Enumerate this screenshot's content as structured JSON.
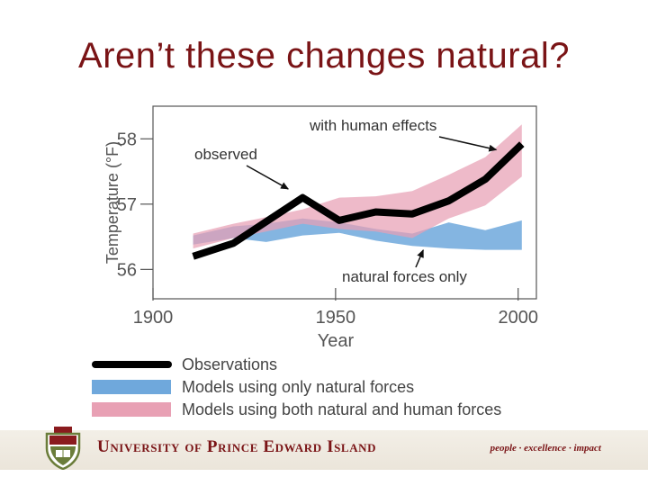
{
  "slide": {
    "title": "Aren’t these changes natural?"
  },
  "chart_data": {
    "type": "line",
    "xlabel": "Year",
    "ylabel": "Temperature (°F)",
    "xlim": [
      1900,
      2005
    ],
    "ylim": [
      55.55,
      58.5
    ],
    "x_ticks": [
      1900,
      1950,
      2000
    ],
    "y_ticks": [
      56,
      57,
      58
    ],
    "x_tick_labels": [
      "1900",
      "1950",
      "2000"
    ],
    "y_tick_labels": [
      "56",
      "57",
      "58"
    ],
    "series": [
      {
        "name": "Observations",
        "color": "#000000",
        "x": [
          1911,
          1922,
          1941,
          1951,
          1961,
          1971,
          1981,
          1991,
          2001
        ],
        "y": [
          56.2,
          56.4,
          57.1,
          56.75,
          56.88,
          56.85,
          57.05,
          57.38,
          57.92
        ]
      },
      {
        "name": "Models using only natural forces",
        "color": "#6fa8dc",
        "x": [
          1911,
          1922,
          1931,
          1941,
          1951,
          1961,
          1971,
          1981,
          1991,
          2001
        ],
        "lower": [
          56.38,
          56.48,
          56.42,
          56.52,
          56.56,
          56.44,
          56.36,
          56.32,
          56.3,
          56.3
        ],
        "upper": [
          56.52,
          56.66,
          56.7,
          56.78,
          56.72,
          56.62,
          56.55,
          56.72,
          56.6,
          56.75
        ]
      },
      {
        "name": "Models using both natural and human forces",
        "color": "#e8a0b4",
        "x": [
          1911,
          1922,
          1931,
          1941,
          1951,
          1961,
          1971,
          1981,
          1991,
          2001
        ],
        "lower": [
          56.32,
          56.48,
          56.58,
          56.7,
          56.62,
          56.58,
          56.48,
          56.78,
          56.98,
          57.42
        ],
        "upper": [
          56.55,
          56.7,
          56.8,
          56.92,
          57.1,
          57.12,
          57.2,
          57.45,
          57.72,
          58.22
        ]
      }
    ],
    "annotations": [
      {
        "text": "with human effects",
        "target_x": 1994,
        "target_y": 57.75
      },
      {
        "text": "observed",
        "target_x": 1938,
        "target_y": 57.15
      },
      {
        "text": "natural forces only",
        "target_x": 1974,
        "target_y": 56.35
      }
    ],
    "legend": {
      "position": "bottom",
      "items": [
        {
          "label": "Observations",
          "style": "line",
          "color": "#000000"
        },
        {
          "label": "Models using only natural forces",
          "style": "band",
          "color": "#6fa8dc"
        },
        {
          "label": "Models using both natural and human forces",
          "style": "band",
          "color": "#e8a0b4"
        }
      ]
    }
  },
  "footer": {
    "university": "University of Prince Edward Island",
    "tagline": "people · excellence · impact"
  }
}
